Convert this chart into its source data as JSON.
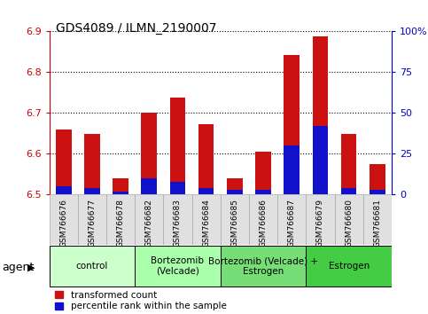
{
  "title": "GDS4089 / ILMN_2190007",
  "samples": [
    "GSM766676",
    "GSM766677",
    "GSM766678",
    "GSM766682",
    "GSM766683",
    "GSM766684",
    "GSM766685",
    "GSM766686",
    "GSM766687",
    "GSM766679",
    "GSM766680",
    "GSM766681"
  ],
  "red_tops": [
    6.66,
    6.648,
    6.54,
    6.7,
    6.738,
    6.673,
    6.54,
    6.605,
    6.842,
    6.887,
    6.648,
    6.574
  ],
  "blue_pct": [
    5,
    4,
    2,
    10,
    8,
    4,
    3,
    3,
    30,
    42,
    4,
    3
  ],
  "ymin": 6.5,
  "ymax": 6.9,
  "y2min": 0,
  "y2max": 100,
  "yticks_left": [
    6.5,
    6.6,
    6.7,
    6.8,
    6.9
  ],
  "yticks_right": [
    0,
    25,
    50,
    75,
    100
  ],
  "ytick_labels_right": [
    "0",
    "25",
    "50",
    "75",
    "100%"
  ],
  "groups": [
    {
      "label": "control",
      "start": 0,
      "end": 3,
      "color": "#ccffcc"
    },
    {
      "label": "Bortezomib\n(Velcade)",
      "start": 3,
      "end": 6,
      "color": "#aaffaa"
    },
    {
      "label": "Bortezomib (Velcade) +\nEstrogen",
      "start": 6,
      "end": 9,
      "color": "#77dd77"
    },
    {
      "label": "Estrogen",
      "start": 9,
      "end": 12,
      "color": "#44cc44"
    }
  ],
  "bar_width": 0.55,
  "red_color": "#cc1111",
  "blue_color": "#1111cc",
  "legend_red": "transformed count",
  "legend_blue": "percentile rank within the sample",
  "xlabel_agent": "agent",
  "left_tick_color": "#cc0000",
  "right_tick_color": "#0000cc",
  "grid_linestyle": ":",
  "grid_color": "#000000",
  "grid_linewidth": 0.8
}
